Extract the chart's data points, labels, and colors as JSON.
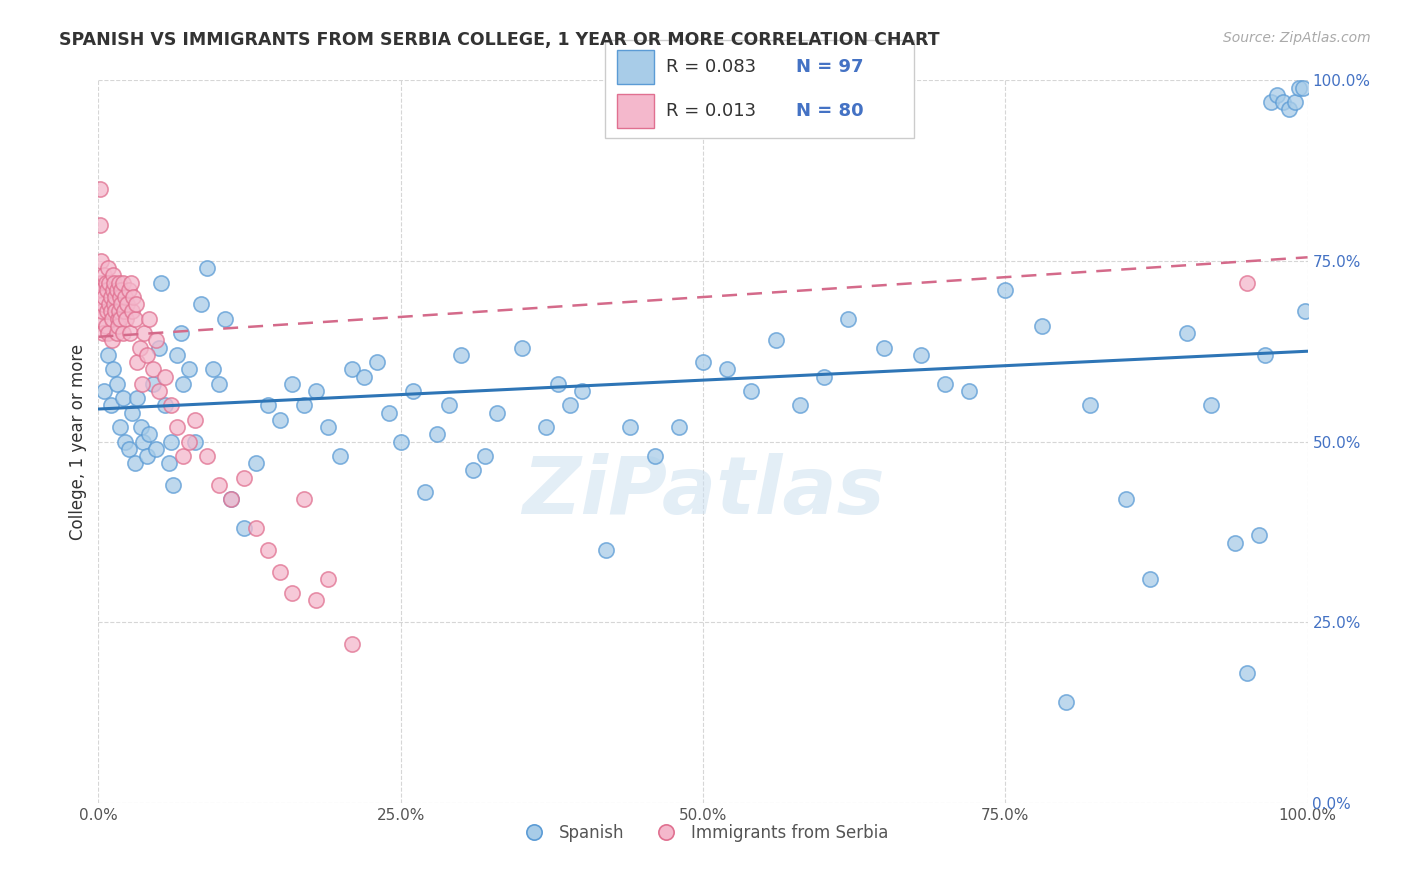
{
  "title": "SPANISH VS IMMIGRANTS FROM SERBIA COLLEGE, 1 YEAR OR MORE CORRELATION CHART",
  "source": "Source: ZipAtlas.com",
  "ylabel": "College, 1 year or more",
  "xlim": [
    0.0,
    1.0
  ],
  "ylim": [
    0.0,
    1.0
  ],
  "xticks": [
    0.0,
    0.25,
    0.5,
    0.75,
    1.0
  ],
  "yticks": [
    0.0,
    0.25,
    0.5,
    0.75,
    1.0
  ],
  "xticklabels": [
    "0.0%",
    "25.0%",
    "50.0%",
    "75.0%",
    "100.0%"
  ],
  "yticklabels": [
    "0.0%",
    "25.0%",
    "50.0%",
    "75.0%",
    "100.0%"
  ],
  "legend_labels": [
    "Spanish",
    "Immigrants from Serbia"
  ],
  "legend_r_values": [
    "0.083",
    "0.013"
  ],
  "legend_n_values": [
    "97",
    "80"
  ],
  "blue_color": "#a8cce8",
  "pink_color": "#f4b8cc",
  "blue_edge_color": "#5b9bd5",
  "pink_edge_color": "#e07090",
  "blue_line_color": "#2e75b6",
  "pink_line_color": "#d46a8a",
  "watermark": "ZiPatlas",
  "blue_R": 0.083,
  "pink_R": 0.013,
  "blue_N": 97,
  "pink_N": 80,
  "blue_line_start_y": 0.545,
  "blue_line_end_y": 0.625,
  "pink_line_start_y": 0.645,
  "pink_line_end_y": 0.755,
  "blue_scatter_x": [
    0.005,
    0.008,
    0.01,
    0.012,
    0.015,
    0.018,
    0.02,
    0.022,
    0.025,
    0.028,
    0.03,
    0.032,
    0.035,
    0.037,
    0.04,
    0.042,
    0.045,
    0.048,
    0.05,
    0.052,
    0.055,
    0.058,
    0.06,
    0.062,
    0.065,
    0.068,
    0.07,
    0.075,
    0.08,
    0.085,
    0.09,
    0.095,
    0.1,
    0.105,
    0.11,
    0.12,
    0.13,
    0.14,
    0.15,
    0.16,
    0.17,
    0.18,
    0.19,
    0.2,
    0.21,
    0.22,
    0.23,
    0.24,
    0.25,
    0.26,
    0.27,
    0.28,
    0.29,
    0.3,
    0.31,
    0.32,
    0.33,
    0.35,
    0.37,
    0.38,
    0.39,
    0.4,
    0.42,
    0.44,
    0.46,
    0.48,
    0.5,
    0.52,
    0.54,
    0.56,
    0.58,
    0.6,
    0.62,
    0.65,
    0.68,
    0.7,
    0.72,
    0.75,
    0.78,
    0.8,
    0.82,
    0.85,
    0.87,
    0.9,
    0.92,
    0.94,
    0.95,
    0.96,
    0.965,
    0.97,
    0.975,
    0.98,
    0.985,
    0.99,
    0.993,
    0.996,
    0.998
  ],
  "blue_scatter_y": [
    0.57,
    0.62,
    0.55,
    0.6,
    0.58,
    0.52,
    0.56,
    0.5,
    0.49,
    0.54,
    0.47,
    0.56,
    0.52,
    0.5,
    0.48,
    0.51,
    0.58,
    0.49,
    0.63,
    0.72,
    0.55,
    0.47,
    0.5,
    0.44,
    0.62,
    0.65,
    0.58,
    0.6,
    0.5,
    0.69,
    0.74,
    0.6,
    0.58,
    0.67,
    0.42,
    0.38,
    0.47,
    0.55,
    0.53,
    0.58,
    0.55,
    0.57,
    0.52,
    0.48,
    0.6,
    0.59,
    0.61,
    0.54,
    0.5,
    0.57,
    0.43,
    0.51,
    0.55,
    0.62,
    0.46,
    0.48,
    0.54,
    0.63,
    0.52,
    0.58,
    0.55,
    0.57,
    0.35,
    0.52,
    0.48,
    0.52,
    0.61,
    0.6,
    0.57,
    0.64,
    0.55,
    0.59,
    0.67,
    0.63,
    0.62,
    0.58,
    0.57,
    0.71,
    0.66,
    0.14,
    0.55,
    0.42,
    0.31,
    0.65,
    0.55,
    0.36,
    0.18,
    0.37,
    0.62,
    0.97,
    0.98,
    0.97,
    0.96,
    0.97,
    0.99,
    0.99,
    0.68
  ],
  "pink_scatter_x": [
    0.001,
    0.002,
    0.002,
    0.003,
    0.003,
    0.004,
    0.004,
    0.005,
    0.005,
    0.006,
    0.006,
    0.007,
    0.007,
    0.008,
    0.008,
    0.009,
    0.009,
    0.01,
    0.01,
    0.011,
    0.011,
    0.012,
    0.012,
    0.013,
    0.013,
    0.014,
    0.014,
    0.015,
    0.015,
    0.016,
    0.016,
    0.017,
    0.017,
    0.018,
    0.018,
    0.019,
    0.019,
    0.02,
    0.02,
    0.021,
    0.022,
    0.023,
    0.024,
    0.025,
    0.026,
    0.027,
    0.028,
    0.029,
    0.03,
    0.031,
    0.032,
    0.034,
    0.036,
    0.038,
    0.04,
    0.042,
    0.045,
    0.048,
    0.05,
    0.055,
    0.06,
    0.065,
    0.07,
    0.075,
    0.08,
    0.09,
    0.1,
    0.11,
    0.12,
    0.13,
    0.14,
    0.15,
    0.16,
    0.17,
    0.18,
    0.19,
    0.21,
    0.95,
    0.001,
    0.001
  ],
  "pink_scatter_y": [
    0.67,
    0.72,
    0.75,
    0.68,
    0.71,
    0.65,
    0.69,
    0.73,
    0.7,
    0.66,
    0.72,
    0.68,
    0.71,
    0.74,
    0.65,
    0.69,
    0.72,
    0.68,
    0.7,
    0.64,
    0.67,
    0.71,
    0.73,
    0.69,
    0.72,
    0.68,
    0.7,
    0.65,
    0.71,
    0.67,
    0.66,
    0.72,
    0.68,
    0.7,
    0.67,
    0.69,
    0.71,
    0.65,
    0.72,
    0.68,
    0.7,
    0.67,
    0.69,
    0.71,
    0.65,
    0.72,
    0.68,
    0.7,
    0.67,
    0.69,
    0.61,
    0.63,
    0.58,
    0.65,
    0.62,
    0.67,
    0.6,
    0.64,
    0.57,
    0.59,
    0.55,
    0.52,
    0.48,
    0.5,
    0.53,
    0.48,
    0.44,
    0.42,
    0.45,
    0.38,
    0.35,
    0.32,
    0.29,
    0.42,
    0.28,
    0.31,
    0.22,
    0.72,
    0.85,
    0.8
  ]
}
